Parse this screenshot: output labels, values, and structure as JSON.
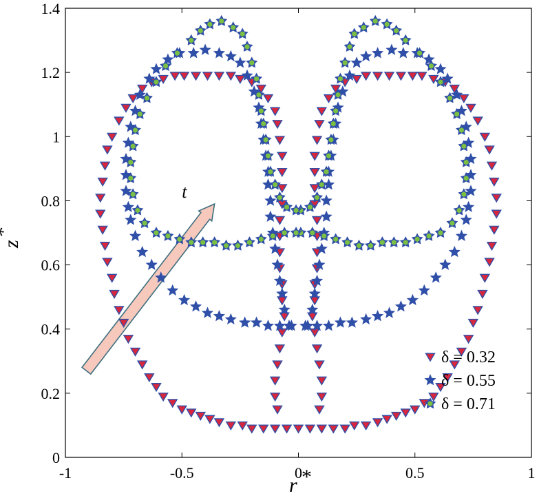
{
  "colors": {
    "marker_stroke": "#2f4fa8",
    "triangle_fill": "#d8263c",
    "star_fill": "#2f4fa8",
    "star_center": "#7cc043",
    "arrow_fill": "#f7c9bd",
    "arrow_stroke": "#3d6e7f"
  },
  "chart_data": {
    "type": "scatter",
    "xlabel": "r",
    "xlabel_sup": "*",
    "ylabel": "z",
    "ylabel_sup": "*",
    "xlim": [
      -1,
      1
    ],
    "ylim": [
      0,
      1.4
    ],
    "xticks": [
      -1,
      -0.5,
      0,
      0.5,
      1
    ],
    "xtick_labels": [
      "-1",
      "-0.5",
      "0",
      "0.5",
      "1"
    ],
    "yticks": [
      0,
      0.2,
      0.4,
      0.6,
      0.8,
      1,
      1.2,
      1.4
    ],
    "ytick_labels": [
      "0",
      "0.2",
      "0.4",
      "0.6",
      "0.8",
      "1",
      "1.2",
      "1.4"
    ],
    "grid": false,
    "legend_position": "bottom-right",
    "annotation": {
      "text": "t",
      "arrow_from": [
        -0.91,
        0.27
      ],
      "arrow_to": [
        -0.36,
        0.79
      ],
      "text_at": [
        -0.5,
        0.81
      ]
    },
    "series": [
      {
        "name": "δ = 0.32",
        "marker": "triangle-down",
        "curves": [
          {
            "points": [
              [
                0.09,
                0.15
              ],
              [
                0.1,
                0.19
              ],
              [
                0.1,
                0.24
              ],
              [
                0.09,
                0.29
              ],
              [
                0.08,
                0.34
              ],
              [
                0.07,
                0.39
              ],
              [
                0.06,
                0.44
              ],
              [
                0.07,
                0.49
              ],
              [
                0.07,
                0.54
              ],
              [
                0.08,
                0.59
              ],
              [
                0.08,
                0.64
              ],
              [
                0.08,
                0.69
              ],
              [
                0.08,
                0.74
              ],
              [
                0.07,
                0.79
              ],
              [
                0.07,
                0.84
              ],
              [
                0.07,
                0.89
              ],
              [
                0.07,
                0.94
              ],
              [
                0.08,
                0.99
              ],
              [
                0.09,
                1.04
              ],
              [
                0.1,
                1.08
              ],
              [
                0.13,
                1.12
              ],
              [
                0.16,
                1.15
              ],
              [
                0.2,
                1.17
              ],
              [
                0.25,
                1.18
              ],
              [
                0.29,
                1.19
              ],
              [
                0.34,
                1.19
              ],
              [
                0.39,
                1.19
              ],
              [
                0.44,
                1.19
              ],
              [
                0.49,
                1.19
              ],
              [
                0.53,
                1.19
              ],
              [
                0.58,
                1.18
              ],
              [
                0.63,
                1.17
              ],
              [
                0.67,
                1.15
              ],
              [
                0.71,
                1.12
              ],
              [
                0.74,
                1.09
              ],
              [
                0.77,
                1.05
              ],
              [
                0.8,
                1.0
              ],
              [
                0.82,
                0.96
              ],
              [
                0.83,
                0.91
              ],
              [
                0.84,
                0.86
              ],
              [
                0.85,
                0.81
              ],
              [
                0.85,
                0.76
              ],
              [
                0.84,
                0.71
              ],
              [
                0.83,
                0.66
              ],
              [
                0.82,
                0.61
              ],
              [
                0.8,
                0.56
              ],
              [
                0.79,
                0.51
              ],
              [
                0.77,
                0.46
              ],
              [
                0.75,
                0.42
              ],
              [
                0.73,
                0.37
              ],
              [
                0.7,
                0.33
              ],
              [
                0.67,
                0.29
              ],
              [
                0.64,
                0.25
              ],
              [
                0.61,
                0.22
              ],
              [
                0.58,
                0.19
              ],
              [
                0.54,
                0.17
              ],
              [
                0.5,
                0.15
              ],
              [
                0.46,
                0.14
              ],
              [
                0.42,
                0.13
              ],
              [
                0.38,
                0.12
              ],
              [
                0.34,
                0.11
              ],
              [
                0.29,
                0.1
              ],
              [
                0.24,
                0.1
              ],
              [
                0.2,
                0.09
              ],
              [
                0.15,
                0.09
              ],
              [
                0.1,
                0.09
              ],
              [
                0.05,
                0.09
              ],
              [
                0.0,
                0.09
              ]
            ]
          }
        ]
      },
      {
        "name": "δ = 0.55",
        "marker": "star",
        "curves": [
          {
            "points": [
              [
                0.04,
                0.41
              ],
              [
                0.06,
                0.46
              ],
              [
                0.07,
                0.51
              ],
              [
                0.08,
                0.55
              ],
              [
                0.09,
                0.6
              ],
              [
                0.1,
                0.65
              ],
              [
                0.11,
                0.7
              ],
              [
                0.12,
                0.75
              ],
              [
                0.12,
                0.8
              ],
              [
                0.13,
                0.85
              ],
              [
                0.13,
                0.89
              ],
              [
                0.14,
                0.94
              ],
              [
                0.15,
                0.99
              ],
              [
                0.16,
                1.04
              ],
              [
                0.17,
                1.09
              ],
              [
                0.19,
                1.14
              ],
              [
                0.22,
                1.19
              ],
              [
                0.25,
                1.23
              ],
              [
                0.29,
                1.25
              ],
              [
                0.34,
                1.26
              ],
              [
                0.4,
                1.27
              ],
              [
                0.45,
                1.26
              ],
              [
                0.51,
                1.26
              ],
              [
                0.56,
                1.24
              ],
              [
                0.61,
                1.21
              ],
              [
                0.64,
                1.18
              ],
              [
                0.68,
                1.13
              ],
              [
                0.7,
                1.08
              ],
              [
                0.72,
                1.03
              ],
              [
                0.73,
                0.98
              ],
              [
                0.74,
                0.93
              ],
              [
                0.74,
                0.88
              ],
              [
                0.74,
                0.83
              ],
              [
                0.73,
                0.78
              ],
              [
                0.72,
                0.74
              ],
              [
                0.7,
                0.69
              ],
              [
                0.67,
                0.64
              ],
              [
                0.63,
                0.6
              ],
              [
                0.59,
                0.56
              ],
              [
                0.54,
                0.52
              ],
              [
                0.49,
                0.49
              ],
              [
                0.44,
                0.47
              ],
              [
                0.39,
                0.45
              ],
              [
                0.34,
                0.44
              ],
              [
                0.29,
                0.43
              ],
              [
                0.23,
                0.42
              ],
              [
                0.18,
                0.42
              ],
              [
                0.13,
                0.41
              ],
              [
                0.08,
                0.41
              ],
              [
                0.03,
                0.41
              ]
            ]
          }
        ]
      },
      {
        "name": "δ = 0.71",
        "marker": "star-center",
        "curves": [
          {
            "points": [
              [
                0.01,
                0.77
              ],
              [
                0.05,
                0.78
              ],
              [
                0.08,
                0.81
              ],
              [
                0.1,
                0.85
              ],
              [
                0.12,
                0.89
              ],
              [
                0.13,
                0.94
              ],
              [
                0.14,
                0.99
              ],
              [
                0.15,
                1.04
              ],
              [
                0.16,
                1.08
              ],
              [
                0.17,
                1.13
              ],
              [
                0.18,
                1.18
              ],
              [
                0.2,
                1.23
              ],
              [
                0.22,
                1.28
              ],
              [
                0.24,
                1.32
              ],
              [
                0.28,
                1.34
              ],
              [
                0.33,
                1.36
              ],
              [
                0.38,
                1.35
              ],
              [
                0.42,
                1.33
              ],
              [
                0.46,
                1.3
              ],
              [
                0.52,
                1.26
              ],
              [
                0.57,
                1.22
              ],
              [
                0.61,
                1.17
              ],
              [
                0.65,
                1.12
              ],
              [
                0.68,
                1.07
              ],
              [
                0.7,
                1.02
              ],
              [
                0.71,
                0.97
              ],
              [
                0.72,
                0.92
              ],
              [
                0.72,
                0.87
              ],
              [
                0.71,
                0.82
              ],
              [
                0.69,
                0.77
              ],
              [
                0.66,
                0.73
              ],
              [
                0.61,
                0.7
              ],
              [
                0.56,
                0.69
              ],
              [
                0.51,
                0.68
              ],
              [
                0.46,
                0.67
              ],
              [
                0.41,
                0.67
              ],
              [
                0.36,
                0.67
              ],
              [
                0.31,
                0.66
              ],
              [
                0.26,
                0.66
              ],
              [
                0.21,
                0.67
              ],
              [
                0.16,
                0.68
              ],
              [
                0.11,
                0.69
              ],
              [
                0.06,
                0.7
              ],
              [
                0.01,
                0.7
              ]
            ]
          }
        ]
      }
    ]
  }
}
